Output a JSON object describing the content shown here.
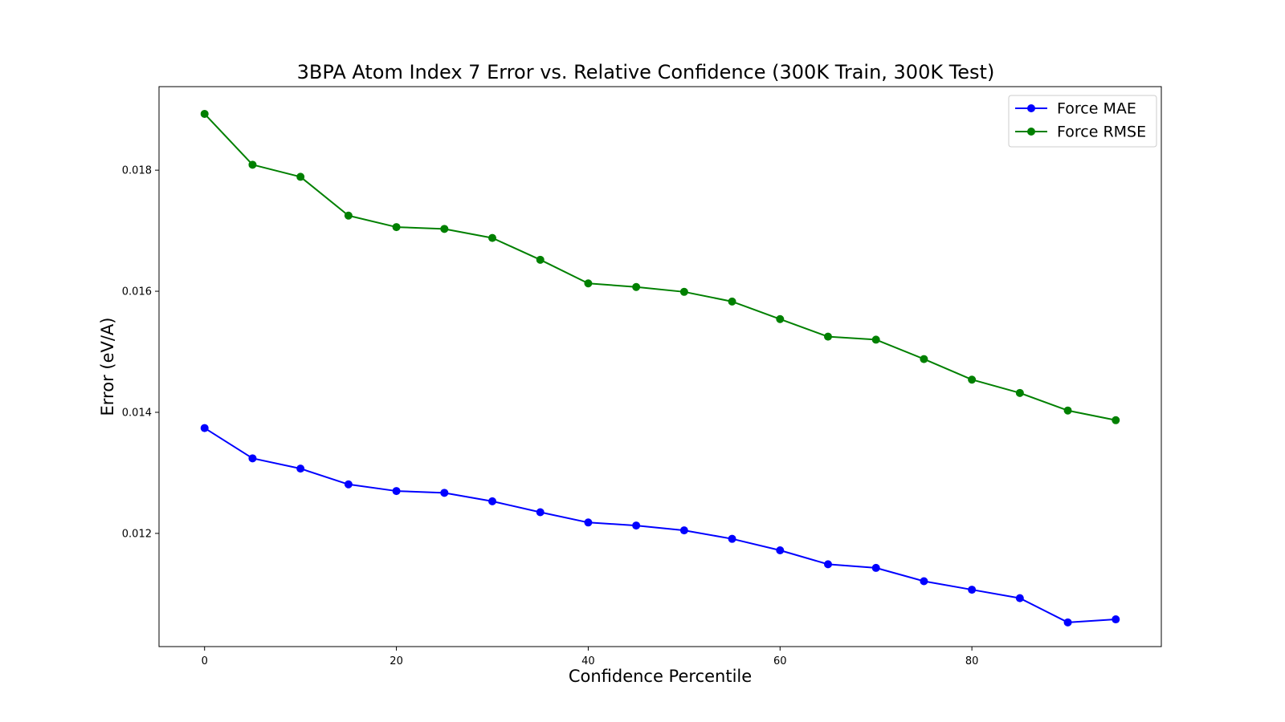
{
  "chart_data": {
    "type": "line",
    "title": "3BPA Atom Index 7 Error vs. Relative Confidence (300K Train, 300K Test)",
    "xlabel": "Confidence Percentile",
    "ylabel": "Error (eV/A)",
    "x": [
      0,
      5,
      10,
      15,
      20,
      25,
      30,
      35,
      40,
      45,
      50,
      55,
      60,
      65,
      70,
      75,
      80,
      85,
      90,
      95
    ],
    "xlim": [
      -4.75,
      99.75
    ],
    "ylim": [
      0.01013,
      0.01938
    ],
    "xticks": [
      0,
      20,
      40,
      60,
      80
    ],
    "xtick_labels": [
      "0",
      "20",
      "40",
      "60",
      "80"
    ],
    "yticks": [
      0.012,
      0.014,
      0.016,
      0.018
    ],
    "ytick_labels": [
      "0.012",
      "0.014",
      "0.016",
      "0.018"
    ],
    "grid": false,
    "legend_position": "top-right",
    "series": [
      {
        "name": "Force MAE",
        "color": "#0000ff",
        "values": [
          0.01374,
          0.01324,
          0.01307,
          0.01281,
          0.0127,
          0.01267,
          0.01253,
          0.01235,
          0.01218,
          0.01213,
          0.01205,
          0.01191,
          0.01172,
          0.01149,
          0.01143,
          0.01121,
          0.01107,
          0.01093,
          0.01053,
          0.01058
        ]
      },
      {
        "name": "Force RMSE",
        "color": "#008000",
        "values": [
          0.01893,
          0.01809,
          0.01789,
          0.01725,
          0.01706,
          0.01703,
          0.01688,
          0.01652,
          0.01613,
          0.01607,
          0.01599,
          0.01583,
          0.01554,
          0.01525,
          0.0152,
          0.01488,
          0.01454,
          0.01432,
          0.01403,
          0.01387
        ]
      }
    ]
  }
}
